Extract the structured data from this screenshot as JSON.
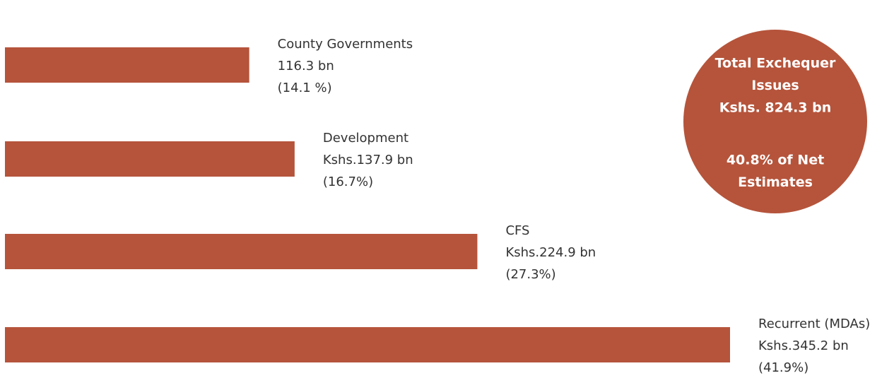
{
  "chart_data": {
    "type": "bar",
    "orientation": "horizontal",
    "categories": [
      "County Governments",
      "Development",
      "CFS",
      "Recurrent (MDAs)"
    ],
    "values": [
      116.3,
      137.9,
      224.9,
      345.2
    ],
    "value_labels": [
      "116.3 bn",
      "Kshs.137.9 bn",
      "Kshs.224.9 bn",
      "Kshs.345.2 bn"
    ],
    "share_labels": [
      "(14.1 %)",
      "(16.7%)",
      "(27.3%)",
      "(41.9%)"
    ],
    "color": "#b5543b",
    "annotation": [
      [
        "Total Exchequer",
        "Issues",
        "Kshs. 824.3 bn"
      ],
      [
        "40.8% of Net",
        "Estimates"
      ]
    ],
    "annotation_color": "#b5543b"
  }
}
